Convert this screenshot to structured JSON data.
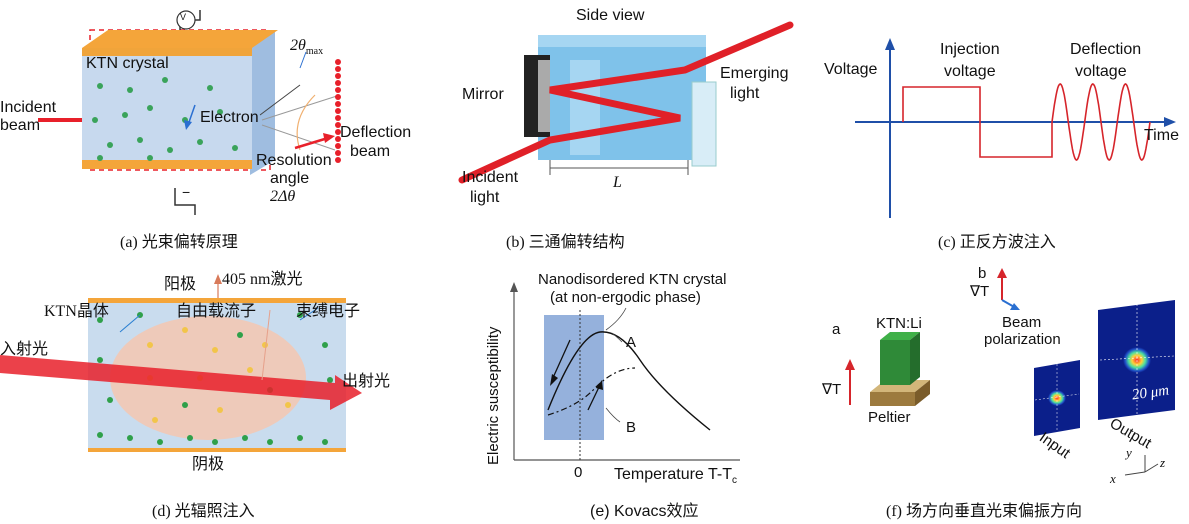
{
  "panel_a": {
    "caption": "(a) 光束偏转原理",
    "incident_beam": [
      "Incident",
      "beam"
    ],
    "crystal": "KTN crystal",
    "electron": "Electron",
    "voltmeter": "V",
    "angle_max": "2θ",
    "angle_max_sub": "max",
    "deflection": [
      "Deflection",
      "beam"
    ],
    "resolution": [
      "Resolution",
      "angle",
      "2Δθ"
    ],
    "minus": "−"
  },
  "panel_b": {
    "caption": "(b) 三通偏转结构",
    "side_view": "Side view",
    "mirror": "Mirror",
    "emerging": [
      "Emerging",
      "light"
    ],
    "incident": [
      "Incident",
      "light"
    ],
    "length": "L"
  },
  "panel_c": {
    "caption": "(c) 正反方波注入",
    "voltage": "Voltage",
    "injection": [
      "Injection",
      "voltage"
    ],
    "deflection": [
      "Deflection",
      "voltage"
    ],
    "time": "Time"
  },
  "panel_d": {
    "caption": "(d) 光辐照注入",
    "anode": "阳极",
    "laser": "405 nm激光",
    "ktn": "KTN晶体",
    "free_carrier": "自由载流子",
    "bound_electron": "束缚电子",
    "incident": "入射光",
    "emergent": "出射光",
    "cathode": "阴极"
  },
  "panel_e": {
    "caption": "(e) Kovacs效应",
    "title": [
      "Nanodisordered KTN crystal",
      "(at non-ergodic phase)"
    ],
    "ylabel": "Electric susceptibility",
    "xlabel": "Temperature T-T",
    "xlabel_sub": "c",
    "zero": "0",
    "curve_a": "A",
    "curve_b": "B"
  },
  "panel_f": {
    "caption": "(f) 场方向垂直光束偏振方向",
    "label_a": "a",
    "label_b": "b",
    "ktn_li": "KTN:Li",
    "gradient_a": "∇T",
    "gradient_b": "∇T",
    "beam_pol": [
      "Beam",
      "polarization"
    ],
    "peltier": "Peltier",
    "input": "Input",
    "output": "Output",
    "scale": "20 μm",
    "axes": [
      "x",
      "y",
      "z"
    ]
  },
  "colors": {
    "beam_red": "#e8202a",
    "crystal_blue": "#c7d9ee",
    "electrode_orange": "#f4a53a",
    "dot_green": "#3aa35a",
    "axis_blue": "#1f4fa8",
    "wave_red": "#d6252b"
  }
}
